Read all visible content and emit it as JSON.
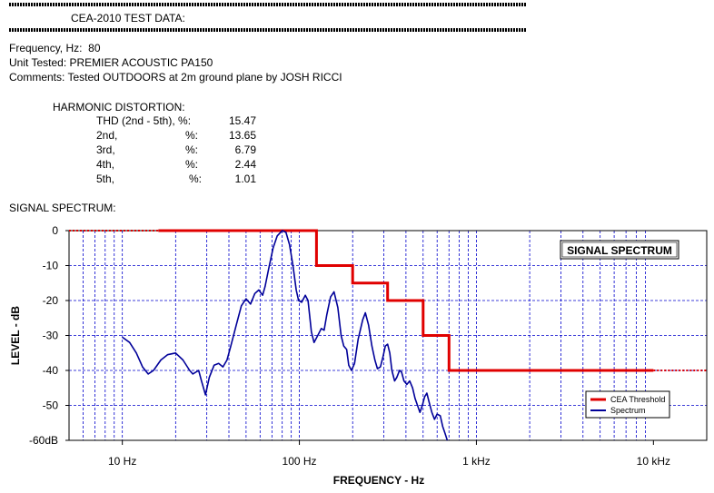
{
  "report": {
    "title": "CEA-2010 TEST DATA:",
    "frequency_line": "Frequency, Hz:  80",
    "unit_line": "Unit Tested: PREMIER ACOUSTIC PA150",
    "comments_line": "Comments: Tested OUTDOORS at 2m ground plane by JOSH RICCI",
    "harmonic_heading": "HARMONIC DISTORTION:",
    "harmonics": [
      {
        "label": "THD (2nd - 5th), %:",
        "unit": "",
        "value": "15.47"
      },
      {
        "label": "2nd,",
        "unit": "%:",
        "value": "13.65"
      },
      {
        "label": "3rd,",
        "unit": "%:",
        "value": "6.79"
      },
      {
        "label": "4th,",
        "unit": "%:",
        "value": "2.44"
      },
      {
        "label": "5th,",
        "unit": "%:",
        "value": "1.01"
      }
    ],
    "spectrum_heading": "SIGNAL SPECTRUM:"
  },
  "chart_data": {
    "type": "line",
    "title": "SIGNAL SPECTRUM",
    "xlabel": "FREQUENCY - Hz",
    "ylabel": "LEVEL - dB",
    "xscale": "log",
    "xlim": [
      5,
      20000
    ],
    "ylim": [
      -60,
      0
    ],
    "grid": true,
    "legend_position": "bottom-right",
    "x_tick_values": [
      10,
      100,
      1000,
      10000
    ],
    "x_tick_labels": [
      "10  Hz",
      "100  Hz",
      "1 kHz",
      "10 kHz"
    ],
    "y_tick_values": [
      0,
      -10,
      -20,
      -30,
      -40,
      -50,
      -60
    ],
    "y_tick_labels": [
      "0",
      "-10",
      "-20",
      "-30",
      "-40",
      "-50",
      "-60dB"
    ],
    "series": [
      {
        "name": "CEA Threshold",
        "color": "#e00000",
        "dotted_left": [
          [
            5,
            0
          ],
          [
            16,
            0
          ]
        ],
        "values": [
          [
            16,
            0
          ],
          [
            125,
            0
          ],
          [
            125,
            -10
          ],
          [
            200,
            -10
          ],
          [
            200,
            -15
          ],
          [
            315,
            -15
          ],
          [
            315,
            -20
          ],
          [
            500,
            -20
          ],
          [
            500,
            -30
          ],
          [
            700,
            -30
          ],
          [
            700,
            -40
          ],
          [
            10000,
            -40
          ]
        ],
        "dotted_right": [
          [
            10000,
            -40
          ],
          [
            20000,
            -40
          ]
        ]
      },
      {
        "name": "Spectrum",
        "color": "#000099",
        "values": [
          [
            10,
            -30.5
          ],
          [
            11,
            -32
          ],
          [
            12,
            -35
          ],
          [
            13,
            -39
          ],
          [
            14,
            -41
          ],
          [
            15,
            -40
          ],
          [
            16.5,
            -37
          ],
          [
            18,
            -35.5
          ],
          [
            20,
            -35
          ],
          [
            22,
            -37
          ],
          [
            24,
            -40
          ],
          [
            25,
            -41
          ],
          [
            27,
            -40
          ],
          [
            28,
            -43
          ],
          [
            29.5,
            -47
          ],
          [
            31,
            -42
          ],
          [
            33,
            -38.5
          ],
          [
            35,
            -38
          ],
          [
            37,
            -39
          ],
          [
            39,
            -37
          ],
          [
            41,
            -33
          ],
          [
            44,
            -27
          ],
          [
            47,
            -21.5
          ],
          [
            50,
            -19.5
          ],
          [
            53,
            -21
          ],
          [
            56,
            -18
          ],
          [
            59,
            -17
          ],
          [
            62,
            -18.5
          ],
          [
            64,
            -16
          ],
          [
            67,
            -11
          ],
          [
            71,
            -5
          ],
          [
            75,
            -1.5
          ],
          [
            80,
            0
          ],
          [
            84,
            -0.5
          ],
          [
            88,
            -4
          ],
          [
            92,
            -10
          ],
          [
            96,
            -17
          ],
          [
            99,
            -20
          ],
          [
            103,
            -20.5
          ],
          [
            108,
            -18.5
          ],
          [
            112,
            -20
          ],
          [
            117,
            -29
          ],
          [
            121,
            -32
          ],
          [
            127,
            -30
          ],
          [
            133,
            -28
          ],
          [
            138,
            -28.5
          ],
          [
            143,
            -24
          ],
          [
            150,
            -19
          ],
          [
            157,
            -17.5
          ],
          [
            165,
            -22
          ],
          [
            172,
            -30
          ],
          [
            178,
            -33
          ],
          [
            185,
            -34
          ],
          [
            190,
            -38.5
          ],
          [
            197,
            -40
          ],
          [
            205,
            -38
          ],
          [
            215,
            -31
          ],
          [
            228,
            -25.5
          ],
          [
            236,
            -23.5
          ],
          [
            246,
            -27
          ],
          [
            257,
            -33
          ],
          [
            267,
            -37
          ],
          [
            276,
            -39.5
          ],
          [
            287,
            -39
          ],
          [
            297,
            -36
          ],
          [
            306,
            -33
          ],
          [
            315,
            -32.5
          ],
          [
            324,
            -35
          ],
          [
            333,
            -40
          ],
          [
            345,
            -43
          ],
          [
            355,
            -42
          ],
          [
            368,
            -40
          ],
          [
            378,
            -40.5
          ],
          [
            390,
            -43
          ],
          [
            405,
            -44
          ],
          [
            420,
            -43
          ],
          [
            436,
            -45
          ],
          [
            450,
            -48
          ],
          [
            465,
            -50
          ],
          [
            480,
            -52
          ],
          [
            495,
            -50
          ],
          [
            510,
            -47.5
          ],
          [
            525,
            -46.5
          ],
          [
            540,
            -49
          ],
          [
            560,
            -52
          ],
          [
            580,
            -54
          ],
          [
            600,
            -52.5
          ],
          [
            625,
            -53
          ],
          [
            645,
            -56
          ],
          [
            665,
            -58
          ],
          [
            685,
            -60
          ]
        ]
      }
    ]
  }
}
